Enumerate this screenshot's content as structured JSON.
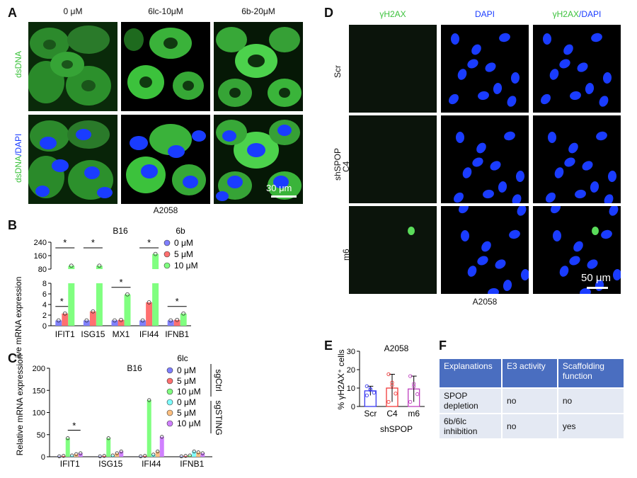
{
  "panel_a": {
    "label": "A",
    "columns": [
      "0 μM",
      "6lc-10μM",
      "6b-20μM"
    ],
    "row1_label": "dsDNA",
    "row2_label_a": "dsDNA",
    "row2_label_b": "/DAPI",
    "scale_bar": "30 μm",
    "caption": "A2058",
    "colors": {
      "green": "#3cc23c",
      "blue": "#1a3cff"
    }
  },
  "panel_b": {
    "label": "B",
    "chart_data": {
      "type": "bar",
      "title": "B16",
      "ylabel": "Relative mRNA expression",
      "legend_title": "6b",
      "categories": [
        "IFIT1",
        "ISG15",
        "MX1",
        "IFI44",
        "IFNB1"
      ],
      "series": [
        {
          "name": "0 μM",
          "color": "#8080ff",
          "values": [
            1,
            1,
            1,
            1,
            1
          ]
        },
        {
          "name": "5 μM",
          "color": "#ff7070",
          "values": [
            2.3,
            2.7,
            1.1,
            4.4,
            1.1
          ]
        },
        {
          "name": "10 μM",
          "color": "#80ff80",
          "values": [
            100,
            100,
            5.9,
            170,
            2.3
          ]
        }
      ],
      "y_ticks_lower": [
        "0",
        "2",
        "4",
        "6",
        "8"
      ],
      "y_ticks_upper": [
        "80",
        "160",
        "240"
      ],
      "axis_break": [
        8,
        80
      ],
      "significance": [
        "*",
        "*",
        "*",
        "*",
        "*",
        "*"
      ]
    }
  },
  "panel_c": {
    "label": "C",
    "chart_data": {
      "type": "bar",
      "title": "B16",
      "ylabel": "Relative mRNA expression",
      "legend_title": "6lc",
      "group_labels": [
        "sgCtrl",
        "sgSTING"
      ],
      "categories": [
        "IFIT1",
        "ISG15",
        "IFI44",
        "IFNB1"
      ],
      "ylim": [
        0,
        200
      ],
      "y_ticks": [
        "0",
        "50",
        "100",
        "150",
        "200"
      ],
      "series": [
        {
          "name": "0 μM",
          "group": "sgCtrl",
          "color": "#8080ff",
          "values": [
            1,
            1,
            1,
            1
          ]
        },
        {
          "name": "5 μM",
          "group": "sgCtrl",
          "color": "#ff7070",
          "values": [
            2,
            2,
            2,
            2
          ]
        },
        {
          "name": "10 μM",
          "group": "sgCtrl",
          "color": "#80ff80",
          "values": [
            42,
            42,
            128,
            3
          ]
        },
        {
          "name": "0 μM",
          "group": "sgSTING",
          "color": "#80ffff",
          "values": [
            3,
            3,
            5,
            12
          ]
        },
        {
          "name": "5 μM",
          "group": "sgSTING",
          "color": "#ffc080",
          "values": [
            6,
            8,
            12,
            10
          ]
        },
        {
          "name": "10 μM",
          "group": "sgSTING",
          "color": "#d080ff",
          "values": [
            8,
            12,
            45,
            8
          ]
        }
      ],
      "significance": [
        "*"
      ]
    }
  },
  "panel_d": {
    "label": "D",
    "col_gamma": "γH2AX",
    "col_dapi": "DAPI",
    "col_merge_a": "γH2AX",
    "col_merge_b": "/DAPI",
    "row_scr": "Scr",
    "row_c4": "C4",
    "row_m6": "m6",
    "shspop": "shSPOP",
    "scale_bar": "50 μm",
    "caption": "A2058"
  },
  "panel_e": {
    "label": "E",
    "chart_data": {
      "type": "bar",
      "title": "A2058",
      "ylabel": "% γH2AX⁺ cells",
      "xlabel": "shSPOP",
      "categories": [
        "Scr",
        "C4",
        "m6"
      ],
      "values": [
        8.5,
        10,
        9.5
      ],
      "errors": [
        2.5,
        7.5,
        7
      ],
      "colors": [
        "#3a3af0",
        "#f03a3a",
        "#c040c0"
      ],
      "ylim": [
        0,
        30
      ],
      "y_ticks": [
        "0",
        "10",
        "20",
        "30"
      ]
    }
  },
  "panel_f": {
    "label": "F",
    "headers": [
      "Explanations",
      "E3 activity",
      "Scaffolding function"
    ],
    "rows": [
      [
        "SPOP depletion",
        "no",
        "no"
      ],
      [
        "6b/6lc inhibition",
        "no",
        "yes"
      ]
    ]
  }
}
